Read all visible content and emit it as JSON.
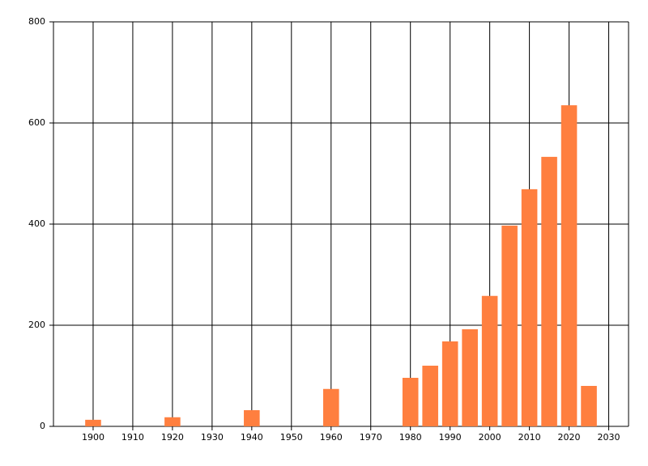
{
  "chart_data": {
    "type": "bar",
    "x": [
      1900,
      1920,
      1940,
      1960,
      1980,
      1985,
      1990,
      1995,
      2000,
      2005,
      2010,
      2015,
      2020,
      2025
    ],
    "values": [
      13,
      18,
      32,
      74,
      96,
      120,
      168,
      192,
      258,
      397,
      469,
      533,
      635,
      80
    ],
    "color": "#ff7f3f",
    "xlim": [
      1890,
      2035
    ],
    "xticks": [
      1900,
      1910,
      1920,
      1930,
      1940,
      1950,
      1960,
      1970,
      1980,
      1990,
      2000,
      2010,
      2020,
      2030
    ],
    "ylim": [
      0,
      800
    ],
    "yticks": [
      0,
      200,
      400,
      600,
      800
    ],
    "grid": true
  }
}
